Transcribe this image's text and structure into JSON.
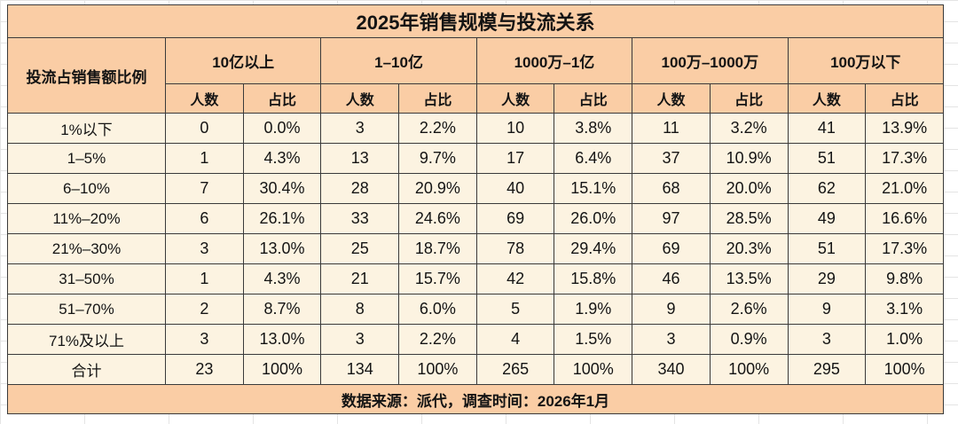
{
  "chart_data": {
    "type": "table",
    "title": "2025年销售规模与投流关系",
    "row_dimension": "投流占销售额比例",
    "column_groups": [
      "10亿以上",
      "1–10亿",
      "1000万–1亿",
      "100万–1000万",
      "100万以下"
    ],
    "measures": [
      "人数",
      "占比"
    ],
    "rows": [
      {
        "label": "1%以下",
        "cells": [
          "0",
          "0.0%",
          "3",
          "2.2%",
          "10",
          "3.8%",
          "11",
          "3.2%",
          "41",
          "13.9%"
        ]
      },
      {
        "label": "1–5%",
        "cells": [
          "1",
          "4.3%",
          "13",
          "9.7%",
          "17",
          "6.4%",
          "37",
          "10.9%",
          "51",
          "17.3%"
        ]
      },
      {
        "label": "6–10%",
        "cells": [
          "7",
          "30.4%",
          "28",
          "20.9%",
          "40",
          "15.1%",
          "68",
          "20.0%",
          "62",
          "21.0%"
        ]
      },
      {
        "label": "11%–20%",
        "cells": [
          "6",
          "26.1%",
          "33",
          "24.6%",
          "69",
          "26.0%",
          "97",
          "28.5%",
          "49",
          "16.6%"
        ]
      },
      {
        "label": "21%–30%",
        "cells": [
          "3",
          "13.0%",
          "25",
          "18.7%",
          "78",
          "29.4%",
          "69",
          "20.3%",
          "51",
          "17.3%"
        ]
      },
      {
        "label": "31–50%",
        "cells": [
          "1",
          "4.3%",
          "21",
          "15.7%",
          "42",
          "15.8%",
          "46",
          "13.5%",
          "29",
          "9.8%"
        ]
      },
      {
        "label": "51–70%",
        "cells": [
          "2",
          "8.7%",
          "8",
          "6.0%",
          "5",
          "1.9%",
          "9",
          "2.6%",
          "9",
          "3.1%"
        ]
      },
      {
        "label": "71%及以上",
        "cells": [
          "3",
          "13.0%",
          "3",
          "2.2%",
          "4",
          "1.5%",
          "3",
          "0.9%",
          "3",
          "1.0%"
        ]
      },
      {
        "label": "合计",
        "cells": [
          "23",
          "100%",
          "134",
          "100%",
          "265",
          "100%",
          "340",
          "100%",
          "295",
          "100%"
        ]
      }
    ],
    "source_note": "数据来源：派代，调查时间：2026年1月",
    "colors": {
      "header_fill": "#FACDA5",
      "body_fill": "#FCF3E1",
      "border": "#3A3A3A",
      "text": "#141414"
    }
  }
}
